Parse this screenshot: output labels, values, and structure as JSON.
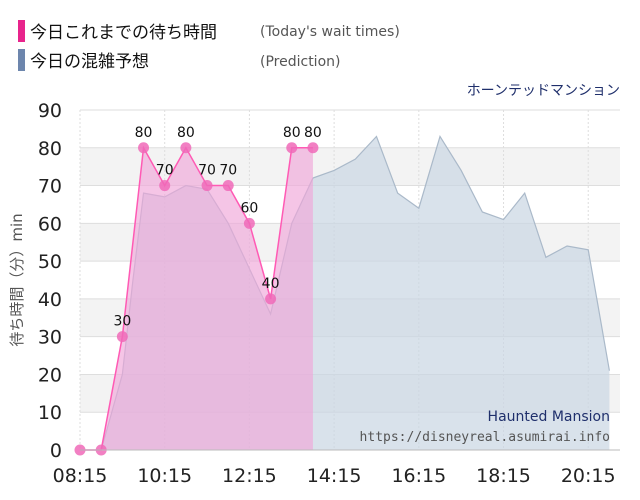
{
  "legend": {
    "actual_label": "今日これまでの待ち時間",
    "actual_sub": "(Today's wait times)",
    "prediction_label": "今日の混雑予想",
    "prediction_sub": "(Prediction)"
  },
  "attraction_ja": "ホーンテッドマンション",
  "watermark_title": "Haunted Mansion",
  "watermark_url": "https://disneyreal.asumirai.info",
  "colors": {
    "actual_line": "#ff5ab4",
    "actual_fill": "#f0a6d8",
    "actual_marker": "#f06ab8",
    "prediction_fill": "#c9d6e2",
    "prediction_line": "#aab9c9",
    "legend_actual": "#e8248c",
    "legend_prediction": "#6d86ad",
    "grid": "#dedede",
    "attraction_text": "#1f2f6b"
  },
  "chart_data": {
    "type": "area",
    "ylabel": "待ち時間（分）min",
    "ylim": [
      0,
      90
    ],
    "yticks": [
      0,
      10,
      20,
      30,
      40,
      50,
      60,
      70,
      80,
      90
    ],
    "xlim": [
      "08:15",
      "21:00"
    ],
    "xticks": [
      "08:15",
      "10:15",
      "12:15",
      "14:15",
      "16:15",
      "18:15",
      "20:15"
    ],
    "grid": true,
    "series": [
      {
        "name": "今日これまでの待ち時間",
        "points": [
          {
            "t": "08:15",
            "y": 0
          },
          {
            "t": "08:45",
            "y": 0
          },
          {
            "t": "09:15",
            "y": 30
          },
          {
            "t": "09:45",
            "y": 80
          },
          {
            "t": "10:15",
            "y": 70
          },
          {
            "t": "10:45",
            "y": 80
          },
          {
            "t": "11:15",
            "y": 70
          },
          {
            "t": "11:45",
            "y": 70
          },
          {
            "t": "12:15",
            "y": 60
          },
          {
            "t": "12:45",
            "y": 40
          },
          {
            "t": "13:15",
            "y": 80
          },
          {
            "t": "13:45",
            "y": 80
          }
        ]
      },
      {
        "name": "今日の混雑予想",
        "points": [
          {
            "t": "08:15",
            "y": 0
          },
          {
            "t": "08:45",
            "y": 0
          },
          {
            "t": "09:15",
            "y": 20
          },
          {
            "t": "09:30",
            "y": 45
          },
          {
            "t": "09:45",
            "y": 68
          },
          {
            "t": "10:15",
            "y": 67
          },
          {
            "t": "10:45",
            "y": 70
          },
          {
            "t": "11:15",
            "y": 69
          },
          {
            "t": "11:45",
            "y": 60
          },
          {
            "t": "12:15",
            "y": 48
          },
          {
            "t": "12:45",
            "y": 36
          },
          {
            "t": "13:15",
            "y": 60
          },
          {
            "t": "13:45",
            "y": 72
          },
          {
            "t": "14:15",
            "y": 74
          },
          {
            "t": "14:45",
            "y": 77
          },
          {
            "t": "15:15",
            "y": 83
          },
          {
            "t": "15:45",
            "y": 68
          },
          {
            "t": "16:15",
            "y": 64
          },
          {
            "t": "16:45",
            "y": 83
          },
          {
            "t": "17:15",
            "y": 74
          },
          {
            "t": "17:45",
            "y": 63
          },
          {
            "t": "18:15",
            "y": 61
          },
          {
            "t": "18:45",
            "y": 68
          },
          {
            "t": "19:15",
            "y": 51
          },
          {
            "t": "19:45",
            "y": 54
          },
          {
            "t": "20:15",
            "y": 53
          },
          {
            "t": "20:45",
            "y": 21
          }
        ]
      }
    ]
  }
}
